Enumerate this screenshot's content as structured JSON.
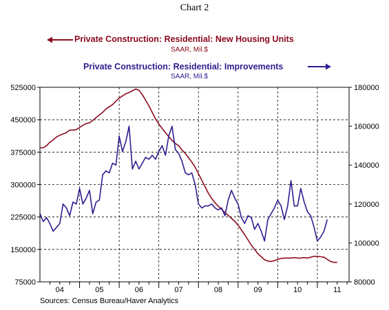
{
  "title": "Chart 2",
  "source": "Sources:  Census Bureau/Haver Analytics",
  "colors": {
    "residential": "#8b0a1e",
    "improvements": "#2c1d8f"
  },
  "legend": {
    "residential": {
      "label": "Private Construction: Residential: New Housing Units",
      "units": "SAAR, Mil.$"
    },
    "improvements": {
      "label": "Private Construction: Residential: Improvements",
      "units": "SAAR, Mil.$"
    }
  },
  "chart_data": {
    "type": "line",
    "title": "Chart 2",
    "x_range": [
      2004.0,
      2011.8
    ],
    "x_tick_labels": [
      "04",
      "05",
      "06",
      "07",
      "08",
      "09",
      "10",
      "11"
    ],
    "left_axis": {
      "ticks": [
        75000,
        150000,
        225000,
        300000,
        375000,
        450000,
        525000
      ],
      "labels": [
        "75000",
        "150000",
        "225000",
        "300000",
        "375000",
        "450000",
        "525000"
      ],
      "ylim": [
        75000,
        525000
      ]
    },
    "right_axis": {
      "ticks": [
        80000,
        100000,
        120000,
        140000,
        160000,
        180000
      ],
      "labels": [
        "80000",
        "100000",
        "120000",
        "140000",
        "160000",
        "180000"
      ],
      "ylim": [
        80000,
        180000
      ]
    },
    "grid": "dashed",
    "series": [
      {
        "name": "Private Construction: Residential: New Housing Units",
        "axis": "left",
        "points": [
          [
            2004.0,
            385000
          ],
          [
            2004.083,
            385000
          ],
          [
            2004.167,
            390000
          ],
          [
            2004.25,
            398000
          ],
          [
            2004.333,
            403000
          ],
          [
            2004.417,
            410000
          ],
          [
            2004.5,
            414000
          ],
          [
            2004.583,
            417000
          ],
          [
            2004.667,
            420000
          ],
          [
            2004.75,
            426000
          ],
          [
            2004.833,
            426000
          ],
          [
            2004.917,
            427000
          ],
          [
            2005.0,
            432000
          ],
          [
            2005.083,
            437000
          ],
          [
            2005.167,
            441000
          ],
          [
            2005.25,
            443000
          ],
          [
            2005.333,
            448000
          ],
          [
            2005.417,
            455000
          ],
          [
            2005.5,
            461000
          ],
          [
            2005.583,
            467000
          ],
          [
            2005.667,
            475000
          ],
          [
            2005.75,
            480000
          ],
          [
            2005.833,
            485000
          ],
          [
            2005.917,
            493000
          ],
          [
            2006.0,
            500000
          ],
          [
            2006.083,
            505000
          ],
          [
            2006.167,
            510000
          ],
          [
            2006.25,
            513000
          ],
          [
            2006.333,
            517000
          ],
          [
            2006.417,
            521000
          ],
          [
            2006.5,
            518000
          ],
          [
            2006.583,
            508000
          ],
          [
            2006.667,
            495000
          ],
          [
            2006.75,
            482000
          ],
          [
            2006.833,
            467000
          ],
          [
            2006.917,
            452000
          ],
          [
            2007.0,
            440000
          ],
          [
            2007.083,
            430000
          ],
          [
            2007.167,
            420000
          ],
          [
            2007.25,
            411000
          ],
          [
            2007.333,
            402000
          ],
          [
            2007.417,
            395000
          ],
          [
            2007.5,
            390000
          ],
          [
            2007.583,
            380000
          ],
          [
            2007.667,
            372000
          ],
          [
            2007.75,
            362000
          ],
          [
            2007.833,
            352000
          ],
          [
            2007.917,
            340000
          ],
          [
            2008.0,
            325000
          ],
          [
            2008.083,
            310000
          ],
          [
            2008.167,
            295000
          ],
          [
            2008.25,
            280000
          ],
          [
            2008.333,
            268000
          ],
          [
            2008.417,
            258000
          ],
          [
            2008.5,
            250000
          ],
          [
            2008.583,
            243000
          ],
          [
            2008.667,
            235000
          ],
          [
            2008.75,
            229000
          ],
          [
            2008.833,
            222000
          ],
          [
            2008.917,
            215000
          ],
          [
            2009.0,
            206000
          ],
          [
            2009.083,
            195000
          ],
          [
            2009.167,
            184000
          ],
          [
            2009.25,
            172000
          ],
          [
            2009.333,
            160000
          ],
          [
            2009.417,
            150000
          ],
          [
            2009.5,
            140000
          ],
          [
            2009.583,
            133000
          ],
          [
            2009.667,
            126000
          ],
          [
            2009.75,
            123000
          ],
          [
            2009.833,
            122000
          ],
          [
            2009.917,
            124000
          ],
          [
            2010.0,
            127000
          ],
          [
            2010.083,
            129000
          ],
          [
            2010.167,
            130000
          ],
          [
            2010.25,
            130000
          ],
          [
            2010.333,
            130000
          ],
          [
            2010.417,
            131000
          ],
          [
            2010.5,
            130000
          ],
          [
            2010.583,
            130000
          ],
          [
            2010.667,
            131000
          ],
          [
            2010.75,
            130000
          ],
          [
            2010.833,
            132000
          ],
          [
            2010.917,
            134000
          ],
          [
            2011.0,
            134000
          ],
          [
            2011.083,
            133000
          ],
          [
            2011.167,
            132000
          ],
          [
            2011.25,
            127000
          ],
          [
            2011.333,
            122000
          ],
          [
            2011.417,
            120000
          ],
          [
            2011.5,
            120000
          ]
        ]
      },
      {
        "name": "Private Construction: Residential: Improvements",
        "axis": "right",
        "points": [
          [
            2004.0,
            115000
          ],
          [
            2004.083,
            111000
          ],
          [
            2004.167,
            113000
          ],
          [
            2004.25,
            110000
          ],
          [
            2004.333,
            106000
          ],
          [
            2004.417,
            108000
          ],
          [
            2004.5,
            110000
          ],
          [
            2004.583,
            120000
          ],
          [
            2004.667,
            118000
          ],
          [
            2004.75,
            114000
          ],
          [
            2004.833,
            121000
          ],
          [
            2004.917,
            120000
          ],
          [
            2005.0,
            128000
          ],
          [
            2005.083,
            120000
          ],
          [
            2005.167,
            123000
          ],
          [
            2005.25,
            127000
          ],
          [
            2005.333,
            115000
          ],
          [
            2005.417,
            121000
          ],
          [
            2005.5,
            122000
          ],
          [
            2005.583,
            135000
          ],
          [
            2005.667,
            137000
          ],
          [
            2005.75,
            136000
          ],
          [
            2005.833,
            141000
          ],
          [
            2005.917,
            140000
          ],
          [
            2006.0,
            155000
          ],
          [
            2006.083,
            147000
          ],
          [
            2006.167,
            152000
          ],
          [
            2006.25,
            160000
          ],
          [
            2006.333,
            138000
          ],
          [
            2006.417,
            142000
          ],
          [
            2006.5,
            138000
          ],
          [
            2006.583,
            141000
          ],
          [
            2006.667,
            144000
          ],
          [
            2006.75,
            143000
          ],
          [
            2006.833,
            145000
          ],
          [
            2006.917,
            143000
          ],
          [
            2007.0,
            147000
          ],
          [
            2007.083,
            150000
          ],
          [
            2007.167,
            145000
          ],
          [
            2007.25,
            155000
          ],
          [
            2007.333,
            160000
          ],
          [
            2007.417,
            148000
          ],
          [
            2007.5,
            146000
          ],
          [
            2007.583,
            142000
          ],
          [
            2007.667,
            136000
          ],
          [
            2007.75,
            135000
          ],
          [
            2007.833,
            136000
          ],
          [
            2007.917,
            130000
          ],
          [
            2008.0,
            120000
          ],
          [
            2008.083,
            118000
          ],
          [
            2008.167,
            119000
          ],
          [
            2008.25,
            119000
          ],
          [
            2008.333,
            120000
          ],
          [
            2008.417,
            118000
          ],
          [
            2008.5,
            117000
          ],
          [
            2008.583,
            118000
          ],
          [
            2008.667,
            114000
          ],
          [
            2008.75,
            122000
          ],
          [
            2008.833,
            127000
          ],
          [
            2008.917,
            123000
          ],
          [
            2009.0,
            120000
          ],
          [
            2009.083,
            113000
          ],
          [
            2009.167,
            110000
          ],
          [
            2009.25,
            114000
          ],
          [
            2009.333,
            113000
          ],
          [
            2009.417,
            107000
          ],
          [
            2009.5,
            110000
          ],
          [
            2009.583,
            106000
          ],
          [
            2009.667,
            101000
          ],
          [
            2009.75,
            112000
          ],
          [
            2009.833,
            115000
          ],
          [
            2009.917,
            118000
          ],
          [
            2010.0,
            122000
          ],
          [
            2010.083,
            119000
          ],
          [
            2010.167,
            112000
          ],
          [
            2010.25,
            119000
          ],
          [
            2010.333,
            132000
          ],
          [
            2010.417,
            119000
          ],
          [
            2010.5,
            119000
          ],
          [
            2010.583,
            128000
          ],
          [
            2010.667,
            121000
          ],
          [
            2010.75,
            116000
          ],
          [
            2010.833,
            114000
          ],
          [
            2010.917,
            108000
          ],
          [
            2011.0,
            101000
          ],
          [
            2011.083,
            103000
          ],
          [
            2011.167,
            106000
          ],
          [
            2011.25,
            112000
          ]
        ]
      }
    ]
  }
}
